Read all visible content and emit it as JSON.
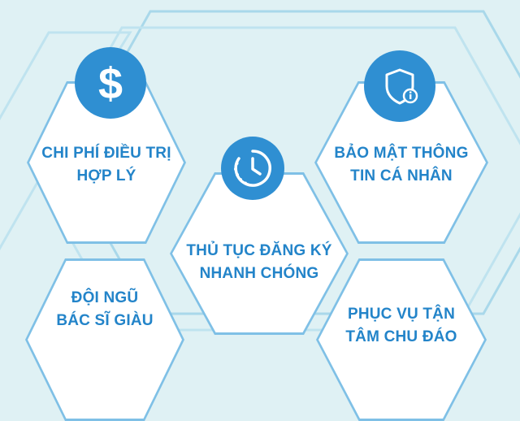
{
  "cards": [
    {
      "id": "cost",
      "line1": "CHI PHÍ ĐIỀU TRỊ",
      "line2": "HỢP LÝ",
      "icon": "dollar-icon"
    },
    {
      "id": "security",
      "line1": "BẢO MẬT THÔNG",
      "line2": "TIN CÁ NHÂN",
      "icon": "shield-icon"
    },
    {
      "id": "registration",
      "line1": "THỦ TỤC ĐĂNG KÝ",
      "line2": "NHANH CHÓNG",
      "icon": "clock-icon"
    },
    {
      "id": "doctors",
      "line1": "ĐỘI NGŨ",
      "line2": "BÁC SĨ GIÀU",
      "icon": ""
    },
    {
      "id": "service",
      "line1": "PHỤC VỤ TẬN",
      "line2": "TÂM CHU ĐÁO",
      "icon": ""
    }
  ],
  "colors": {
    "accent": "#2f8fd2",
    "text": "#2384c9",
    "background": "#dff1f4",
    "outline": "#7fc0e6"
  }
}
